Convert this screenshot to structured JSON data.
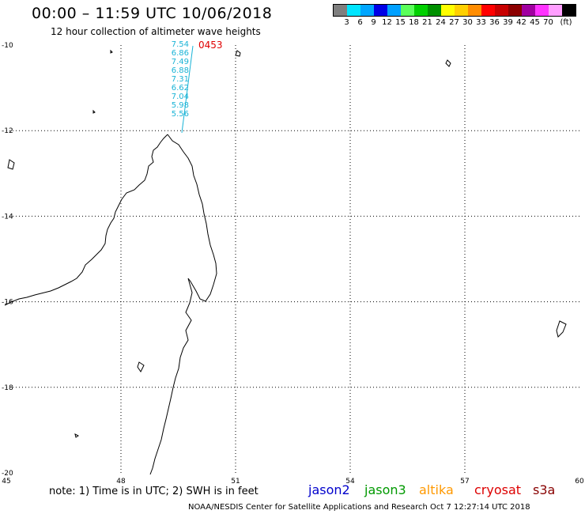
{
  "header": {
    "title": "00:00 – 11:59 UTC 10/06/2018",
    "subtitle": "12 hour collection of altimeter wave heights"
  },
  "legend": {
    "unit": "(ft)",
    "colors": [
      "#7f7f7f",
      "#00e5ff",
      "#00a6ff",
      "#0000e6",
      "#00a0ff",
      "#5aff5a",
      "#00d000",
      "#009000",
      "#ffff00",
      "#ffd000",
      "#ff8c00",
      "#ff0000",
      "#c80000",
      "#8c0000",
      "#a000a0",
      "#ff33ff",
      "#ff9eff",
      "#000000"
    ],
    "labels": [
      "3",
      "6",
      "9",
      "12",
      "15",
      "18",
      "21",
      "24",
      "27",
      "30",
      "33",
      "36",
      "39",
      "42",
      "45",
      "70"
    ]
  },
  "map": {
    "lat_labels": [
      "-10",
      "-12",
      "-14",
      "-16",
      "-18",
      "-20"
    ],
    "lon_labels": [
      "45",
      "48",
      "51",
      "54",
      "57",
      "60"
    ],
    "grid": true
  },
  "observations": {
    "pass_time": "0453",
    "swh_values": [
      "7.54",
      "6.86",
      "7.49",
      "6.88",
      "7.31",
      "6.62",
      "7.04",
      "5.98",
      "5.56"
    ]
  },
  "footer": {
    "note": "note:  1) Time is in UTC; 2) SWH is in feet",
    "satellites": [
      {
        "name": "jason2",
        "color": "#0000cc"
      },
      {
        "name": "jason3",
        "color": "#009900"
      },
      {
        "name": "altika",
        "color": "#ff9900"
      },
      {
        "name": "cryosat",
        "color": "#dd0000"
      },
      {
        "name": "s3a",
        "color": "#880000"
      }
    ],
    "credit": "NOAA/NESDIS Center for Satellite Applications and Research    Oct  7 12:27:14 UTC 2018"
  }
}
